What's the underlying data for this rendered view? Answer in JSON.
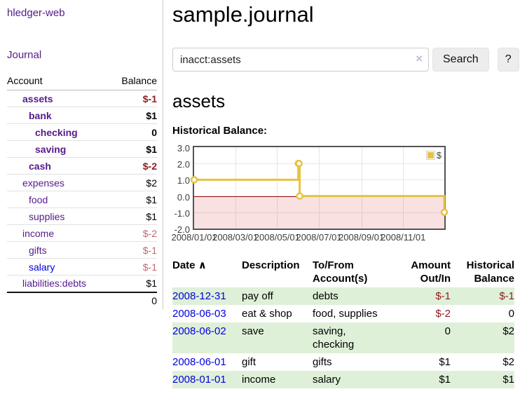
{
  "sidebar": {
    "brand": "hledger-web",
    "journal_link": "Journal",
    "accounts": {
      "header_account": "Account",
      "header_balance": "Balance",
      "rows": [
        {
          "name": "assets",
          "balance": "$-1",
          "indent": 1,
          "in_query": true,
          "balance_tone": "negative",
          "link_tone": "purple"
        },
        {
          "name": "bank",
          "balance": "$1",
          "indent": 2,
          "in_query": true,
          "balance_tone": "normal",
          "link_tone": "purple"
        },
        {
          "name": "checking",
          "balance": "0",
          "indent": 3,
          "in_query": true,
          "balance_tone": "normal",
          "link_tone": "purple"
        },
        {
          "name": "saving",
          "balance": "$1",
          "indent": 3,
          "in_query": true,
          "balance_tone": "normal",
          "link_tone": "purple"
        },
        {
          "name": "cash",
          "balance": "$-2",
          "indent": 2,
          "in_query": true,
          "balance_tone": "negative",
          "link_tone": "purple"
        },
        {
          "name": "expenses",
          "balance": "$2",
          "indent": 1,
          "in_query": false,
          "balance_tone": "normal",
          "link_tone": "purple"
        },
        {
          "name": "food",
          "balance": "$1",
          "indent": 2,
          "in_query": false,
          "balance_tone": "normal",
          "link_tone": "purple"
        },
        {
          "name": "supplies",
          "balance": "$1",
          "indent": 2,
          "in_query": false,
          "balance_tone": "normal",
          "link_tone": "purple"
        },
        {
          "name": "income",
          "balance": "$-2",
          "indent": 1,
          "in_query": false,
          "balance_tone": "negative-dim",
          "link_tone": "purple"
        },
        {
          "name": "gifts",
          "balance": "$-1",
          "indent": 2,
          "in_query": false,
          "balance_tone": "negative-dim",
          "link_tone": "purple"
        },
        {
          "name": "salary",
          "balance": "$-1",
          "indent": 2,
          "in_query": false,
          "balance_tone": "negative-dim",
          "link_tone": "blue"
        },
        {
          "name": "liabilities:debts",
          "balance": "$1",
          "indent": 1,
          "in_query": false,
          "balance_tone": "normal",
          "link_tone": "purple"
        }
      ],
      "total": "0"
    }
  },
  "main": {
    "title": "sample.journal",
    "search": {
      "value": "inacct:assets",
      "clear_icon": "×",
      "button_label": "Search",
      "help_label": "?"
    },
    "account_heading": "assets"
  },
  "chart_data": {
    "type": "line",
    "step": true,
    "title": "Historical Balance:",
    "series": [
      {
        "name": "$",
        "color": "#e8c240",
        "points": [
          [
            "2008-01-01",
            1
          ],
          [
            "2008-06-01",
            2
          ],
          [
            "2008-06-02",
            2
          ],
          [
            "2008-06-03",
            0
          ],
          [
            "2008-12-31",
            -1
          ]
        ]
      }
    ],
    "xlim": [
      "2008-01-01",
      "2008-12-31"
    ],
    "ylim": [
      -2,
      3
    ],
    "x_tick_labels": [
      "2008/01/01",
      "2008/03/01",
      "2008/05/01",
      "2008/07/01",
      "2008/09/01",
      "2008/11/01"
    ],
    "y_tick_labels": [
      "3.0",
      "2.0",
      "1.0",
      "0.0",
      "-1.0",
      "-2.0"
    ],
    "legend": [
      {
        "label": "$",
        "swatch_color": "#e8c240"
      }
    ],
    "legend_position": "top-right",
    "grid": true,
    "zero_line_color": "#8b0000",
    "negative_region": {
      "below": 0,
      "color": "#f8d9d9"
    }
  },
  "register": {
    "sort_icon": "∧",
    "headers": [
      "Date",
      "Description",
      "To/From Account(s)",
      "Amount Out/In",
      "Historical Balance"
    ],
    "rows": [
      {
        "date": "2008-12-31",
        "description": "pay off",
        "accounts": "debts",
        "amount": "$-1",
        "amount_negative": true,
        "balance": "$-1",
        "balance_negative": true
      },
      {
        "date": "2008-06-03",
        "description": "eat & shop",
        "accounts": "food, supplies",
        "amount": "$-2",
        "amount_negative": true,
        "balance": "0",
        "balance_negative": false
      },
      {
        "date": "2008-06-02",
        "description": "save",
        "accounts": "saving, checking",
        "amount": "0",
        "amount_negative": false,
        "balance": "$2",
        "balance_negative": false
      },
      {
        "date": "2008-06-01",
        "description": "gift",
        "accounts": "gifts",
        "amount": "$1",
        "amount_negative": false,
        "balance": "$2",
        "balance_negative": false
      },
      {
        "date": "2008-01-01",
        "description": "income",
        "accounts": "salary",
        "amount": "$1",
        "amount_negative": false,
        "balance": "$1",
        "balance_negative": false
      }
    ]
  },
  "colors": {
    "link_purple": "#551a8b",
    "link_blue": "#0000e0",
    "negative": "#8f1d21",
    "negative_dim": "#c0696e",
    "row_green": "#dff0d8",
    "chart_gold": "#e8c240"
  }
}
